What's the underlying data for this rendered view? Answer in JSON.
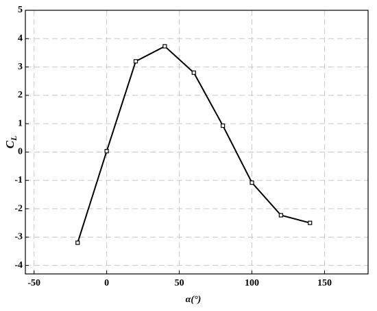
{
  "chart_data": {
    "type": "line",
    "xlabel": "α(°)",
    "ylabel": "C",
    "ylabel_subscript": "L",
    "x": [
      -20,
      0,
      20,
      40,
      60,
      80,
      100,
      120,
      140
    ],
    "series": [
      {
        "color": "#000000",
        "values": [
          -3.2,
          0.03,
          3.2,
          3.73,
          2.8,
          0.93,
          -1.08,
          -2.23,
          -2.5
        ]
      }
    ],
    "xlim": [
      -56,
      180
    ],
    "xticks": [
      -50,
      0,
      50,
      100,
      150
    ],
    "ylim": [
      -4.3,
      5
    ],
    "yticks": [
      -4,
      -3,
      -2,
      -1,
      0,
      1,
      2,
      3,
      4,
      5
    ],
    "grid": true
  }
}
